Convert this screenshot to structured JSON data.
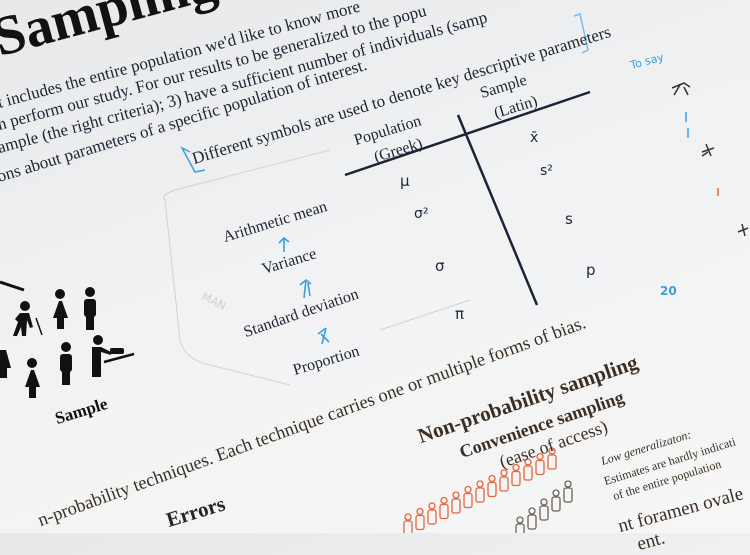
{
  "slide": {
    "title": "Sampling",
    "intro_lines": [
      "t includes the entire population we'd like to know more",
      "n perform our study. For our results to be generalized to the popu",
      "ample (the right criteria); 3) have a sufficient number of individuals (samp",
      "ons about parameters of a specific population of interest."
    ],
    "symbols_statement": "Different symbols are used to denote key descriptive parameters",
    "table": {
      "population_header": [
        "Population",
        "(Greek)"
      ],
      "sample_header": [
        "Sample",
        "(Latin)"
      ],
      "rows": [
        {
          "label": "Arithmetic mean",
          "population": "μ",
          "sample": "x̄"
        },
        {
          "label": "Variance",
          "population": "σ²",
          "sample": "s²"
        },
        {
          "label": "Standard deviation",
          "population": "σ",
          "sample": "s"
        },
        {
          "label": "Proportion",
          "population": "π",
          "sample": "p"
        }
      ]
    },
    "sample_label": "Sample",
    "bias_statement": "n-probability techniques. Each technique carries one or multiple forms of bias.",
    "errors_heading": "Errors",
    "nonprob": {
      "heading": "Non-probability sampling",
      "method": "Convenience sampling",
      "method_note": "(ease of access)",
      "generalization_title": "Low generalizaton:",
      "generalization_lines": [
        "Estimates are hardly indicati",
        "of the entire population"
      ]
    },
    "cutoff_lines": [
      "nt foramen ovale",
      "ent."
    ],
    "handwritten": {
      "note1": "To say",
      "note2": "20",
      "pencil": "MAN"
    }
  },
  "colors": {
    "text": "#1f2233",
    "brown_text": "#3b2e22",
    "marker_blue": "#3aa0dd",
    "orange_figures": "#e8643c",
    "gray_figures": "#6b6358"
  }
}
